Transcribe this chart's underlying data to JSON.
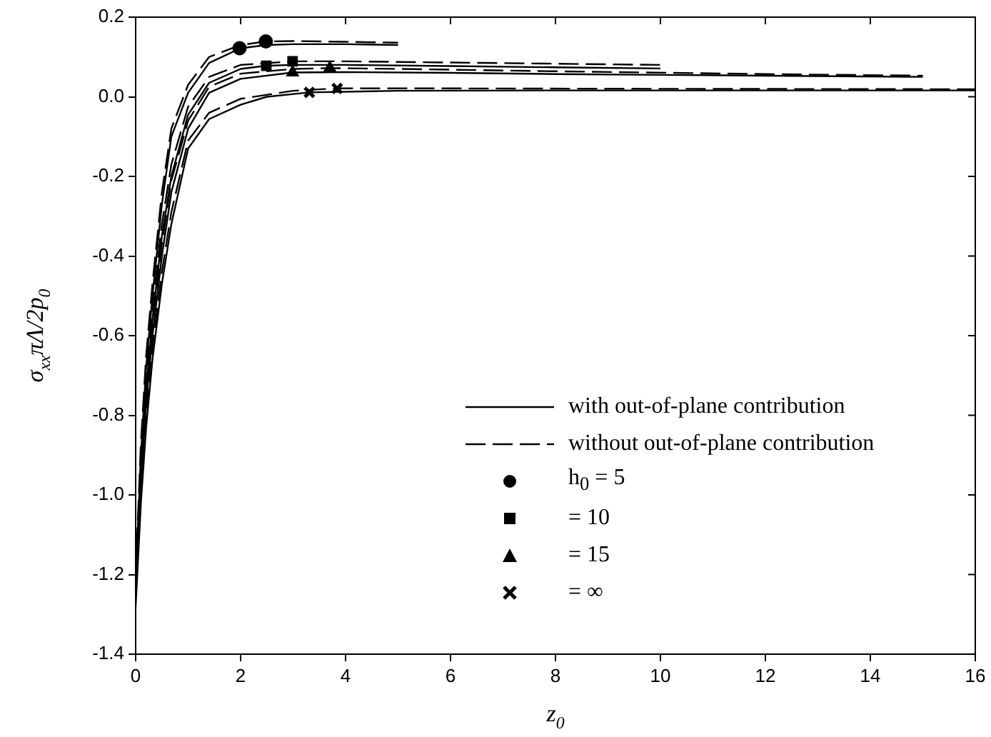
{
  "chart_data": {
    "type": "line",
    "xlabel": "z$_{0}$",
    "ylabel": "σ$_{xx}$πΛ/2p$_{0}$",
    "xlim": [
      0,
      16
    ],
    "xticks": [
      0,
      2,
      4,
      6,
      8,
      10,
      12,
      14,
      16
    ],
    "ylim": [
      -1.4,
      0.2
    ],
    "yticks": [
      -1.4,
      -1.2,
      {
        "value": -1,
        "label": "-1.0"
      },
      -0.8,
      -0.6,
      -0.4,
      -0.2,
      {
        "value": 0,
        "label": "0.0"
      },
      0.2
    ],
    "grid": false,
    "legend": "bottom right",
    "series": [
      {
        "name": "with out-of-plane contribution",
        "color": "#000000",
        "line_style": "solid",
        "marker": "none",
        "x": [
          0,
          0.1,
          0.2,
          0.32,
          0.5,
          0.68,
          1,
          1.4,
          2,
          2.5,
          3,
          4,
          5
        ],
        "values": [
          -1.22,
          -0.9,
          -0.68,
          -0.5,
          -0.27,
          -0.1,
          0.01,
          0.085,
          0.122,
          0.13,
          0.132,
          0.132,
          0.13
        ]
      },
      {
        "name": "without out-of-plane contribution",
        "color": "#000000",
        "line_style": "dashed",
        "marker": "none",
        "x": [
          0,
          0.1,
          0.2,
          0.32,
          0.5,
          0.68,
          1,
          1.4,
          2,
          2.48,
          3,
          4,
          5
        ],
        "values": [
          -1.2,
          -0.87,
          -0.65,
          -0.47,
          -0.24,
          -0.08,
          0.03,
          0.1,
          0.13,
          0.139,
          0.14,
          0.138,
          0.136
        ]
      },
      {
        "color": "#000000",
        "line_style": "solid",
        "marker": "none",
        "x": [
          0,
          0.1,
          0.2,
          0.32,
          0.5,
          0.68,
          1,
          1.4,
          2,
          2.49,
          3,
          4,
          6,
          8,
          10
        ],
        "values": [
          -1.24,
          -0.95,
          -0.74,
          -0.56,
          -0.35,
          -0.2,
          -0.045,
          0.035,
          0.07,
          0.078,
          0.08,
          0.08,
          0.077,
          0.074,
          0.071
        ]
      },
      {
        "color": "#000000",
        "line_style": "dashed",
        "marker": "none",
        "x": [
          0,
          0.1,
          0.2,
          0.32,
          0.5,
          0.68,
          1,
          1.4,
          2,
          2.99,
          4,
          6,
          8,
          10
        ],
        "values": [
          -1.22,
          -0.92,
          -0.71,
          -0.53,
          -0.32,
          -0.17,
          -0.025,
          0.05,
          0.08,
          0.089,
          0.089,
          0.086,
          0.083,
          0.08
        ]
      },
      {
        "color": "#000000",
        "line_style": "solid",
        "marker": "none",
        "x": [
          0,
          0.1,
          0.2,
          0.32,
          0.5,
          0.68,
          1,
          1.4,
          2,
          2.99,
          4,
          6,
          8,
          10,
          12,
          15
        ],
        "values": [
          -1.25,
          -0.97,
          -0.77,
          -0.6,
          -0.4,
          -0.24,
          -0.08,
          0.01,
          0.045,
          0.061,
          0.062,
          0.06,
          0.057,
          0.055,
          0.053,
          0.05
        ]
      },
      {
        "color": "#000000",
        "line_style": "dashed",
        "marker": "none",
        "x": [
          0,
          0.1,
          0.2,
          0.32,
          0.5,
          0.68,
          1,
          1.4,
          2,
          3,
          3.7,
          5,
          8,
          12,
          15
        ],
        "values": [
          -1.23,
          -0.94,
          -0.74,
          -0.57,
          -0.37,
          -0.21,
          -0.06,
          0.025,
          0.058,
          0.07,
          0.072,
          0.07,
          0.064,
          0.057,
          0.053
        ]
      },
      {
        "color": "#000000",
        "line_style": "solid",
        "marker": "none",
        "x": [
          0,
          0.1,
          0.2,
          0.32,
          0.5,
          0.68,
          1,
          1.4,
          2,
          2.5,
          3.31,
          5,
          8,
          12,
          16
        ],
        "values": [
          -1.28,
          -1.02,
          -0.83,
          -0.66,
          -0.47,
          -0.32,
          -0.13,
          -0.056,
          -0.02,
          0,
          0.011,
          0.015,
          0.016,
          0.016,
          0.016
        ]
      },
      {
        "color": "#000000",
        "line_style": "dashed",
        "marker": "none",
        "x": [
          0,
          0.1,
          0.2,
          0.32,
          0.5,
          0.68,
          1,
          1.4,
          2,
          3,
          3.84,
          6,
          10,
          16
        ],
        "values": [
          -1.26,
          -0.99,
          -0.8,
          -0.63,
          -0.44,
          -0.29,
          -0.11,
          -0.04,
          -0.005,
          0.015,
          0.021,
          0.021,
          0.02,
          0.019
        ]
      },
      {
        "type": "scatter",
        "name": "h$_{0}$ = 5",
        "color": "#000000",
        "marker": "circle",
        "x": [
          1.98,
          2.48
        ],
        "values": [
          0.122,
          0.139
        ]
      },
      {
        "type": "scatter",
        "name": "= 10",
        "color": "#000000",
        "marker": "square",
        "x": [
          2.49,
          2.99
        ],
        "values": [
          0.078,
          0.089
        ]
      },
      {
        "type": "scatter",
        "name": "= 15",
        "color": "#000000",
        "marker": "triangle",
        "x": [
          2.99,
          3.7
        ],
        "values": [
          0.061,
          0.072
        ]
      },
      {
        "type": "scatter",
        "name": "= ∞",
        "color": "#000000",
        "marker": "cross",
        "x": [
          3.31,
          3.84
        ],
        "values": [
          0.011,
          0.021
        ]
      }
    ]
  }
}
